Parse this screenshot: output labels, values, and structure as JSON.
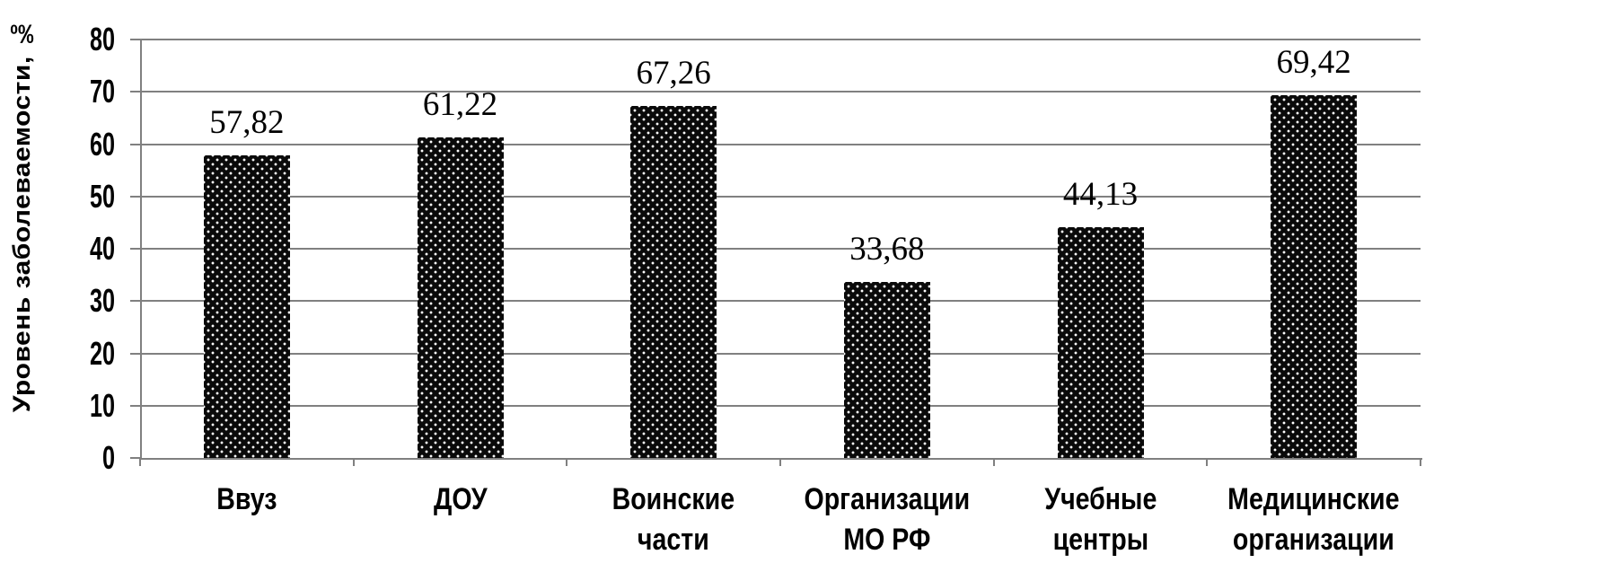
{
  "chart_data": {
    "type": "bar",
    "title": "",
    "ylabel": "Уровень заболеваемости, ‰",
    "xlabel": "",
    "ylim": [
      0,
      80
    ],
    "yticks": [
      0,
      10,
      20,
      30,
      40,
      50,
      60,
      70,
      80
    ],
    "grid": true,
    "legend": "none",
    "categories": [
      "Ввуз",
      "ДОУ",
      "Воинские\nчасти",
      "Организации\nМО РФ",
      "Учебные\nцентры",
      "Медицинские\nорганизации"
    ],
    "values": [
      57.82,
      61.22,
      67.26,
      33.68,
      44.13,
      69.42
    ],
    "value_labels": [
      "57,82",
      "61,22",
      "67,26",
      "33,68",
      "44,13",
      "69,42"
    ],
    "bar_pattern": "black-with-white-dots",
    "colors": {
      "bar_fill": "#0a0a0a",
      "bar_dot": "#ffffff",
      "grid": "#808080",
      "axis": "#808080",
      "text": "#000000"
    }
  }
}
